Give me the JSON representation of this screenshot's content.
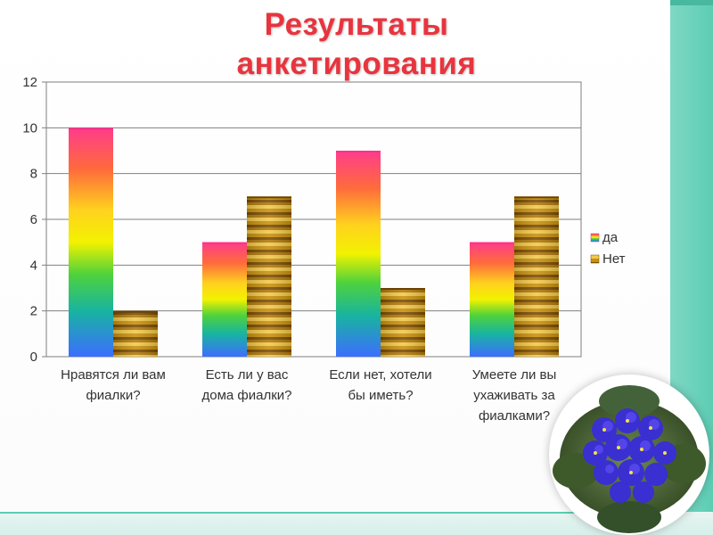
{
  "slide": {
    "title_line1": "Результаты",
    "title_line2": "анкетирования"
  },
  "colors": {
    "title": "#e8343e",
    "accent_band": "#5ccdb3"
  },
  "decor": {
    "photo_icon": "violet-flowerpot-icon"
  },
  "chart_data": {
    "type": "bar",
    "title": "Результаты анкетирования",
    "categories": [
      [
        "Нравятся ли вам",
        "фиалки?"
      ],
      [
        "Есть ли у вас",
        "дома фиалки?"
      ],
      [
        "Если нет, хотели",
        "бы иметь?"
      ],
      [
        "Умеете ли вы",
        "ухаживать за",
        "фиалками?"
      ]
    ],
    "series": [
      {
        "name": "да",
        "values": [
          10,
          5,
          9,
          5
        ],
        "style": "rainbow"
      },
      {
        "name": "Нет",
        "values": [
          2,
          7,
          3,
          7
        ],
        "style": "gold-stripes"
      }
    ],
    "ylim": [
      0,
      12
    ],
    "yticks": [
      0,
      2,
      4,
      6,
      8,
      10,
      12
    ],
    "grid": true,
    "legend_position": "right"
  }
}
